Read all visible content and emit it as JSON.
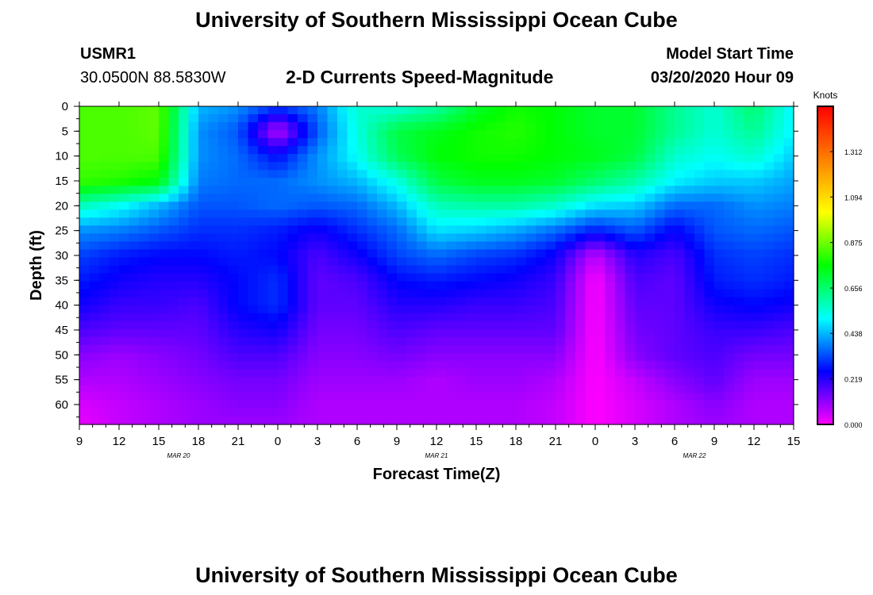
{
  "header": {
    "title": "University of Southern Mississippi Ocean Cube",
    "station": "USMR1",
    "coords": "30.0500N 88.5830W",
    "subtitle": "2-D Currents Speed-Magnitude",
    "model_label": "Model Start Time",
    "model_time": "03/20/2020 Hour 09"
  },
  "footer": {
    "title": "University of Southern Mississippi Ocean Cube"
  },
  "chart_data": {
    "type": "heatmap",
    "title": "2-D Currents Speed-Magnitude",
    "xlabel": "Forecast Time(Z)",
    "ylabel": "Depth (ft)",
    "x_tick_labels": [
      "9",
      "12",
      "15",
      "18",
      "21",
      "0",
      "3",
      "6",
      "9",
      "12",
      "15",
      "18",
      "21",
      "0",
      "3",
      "6",
      "9",
      "12",
      "15"
    ],
    "date_labels": [
      "MAR 20",
      "MAR 21",
      "MAR 22"
    ],
    "date_label_ticks": [
      2.5,
      9,
      15.5
    ],
    "y_tick_labels": [
      "0",
      "5",
      "10",
      "15",
      "20",
      "25",
      "30",
      "35",
      "40",
      "45",
      "50",
      "55",
      "60"
    ],
    "ylim": [
      0,
      64
    ],
    "y_inverted": true,
    "xlim_hours": [
      0,
      54
    ],
    "colorbar": {
      "unit": "Knots",
      "tick_labels": [
        "1.312",
        "1.094",
        "0.875",
        "0.656",
        "0.438",
        "0.219",
        "0.000"
      ],
      "range": [
        0,
        1.53
      ],
      "colors": [
        "#ff00ff",
        "#0000ff",
        "#00ffff",
        "#00ff00",
        "#ffff00",
        "#ff8000",
        "#ff0000"
      ]
    },
    "depths_ft": [
      0,
      5,
      10,
      15,
      20,
      25,
      30,
      35,
      40,
      45,
      50,
      55,
      60,
      64
    ],
    "time_hours": [
      0,
      3,
      6,
      9,
      12,
      15,
      18,
      21,
      24,
      27,
      30,
      33,
      36,
      39,
      42,
      45,
      48,
      51,
      54
    ],
    "speed_knots": [
      [
        0.84,
        0.84,
        0.86,
        0.44,
        0.4,
        0.32,
        0.38,
        0.56,
        0.54,
        0.6,
        0.72,
        0.78,
        0.76,
        0.72,
        0.72,
        0.62,
        0.55,
        0.66,
        0.5
      ],
      [
        0.84,
        0.84,
        0.86,
        0.4,
        0.34,
        0.06,
        0.34,
        0.54,
        0.7,
        0.74,
        0.78,
        0.8,
        0.76,
        0.72,
        0.72,
        0.62,
        0.55,
        0.62,
        0.5
      ],
      [
        0.84,
        0.84,
        0.84,
        0.4,
        0.36,
        0.26,
        0.4,
        0.52,
        0.68,
        0.76,
        0.78,
        0.78,
        0.76,
        0.74,
        0.7,
        0.56,
        0.52,
        0.56,
        0.46
      ],
      [
        0.82,
        0.8,
        0.76,
        0.38,
        0.36,
        0.36,
        0.4,
        0.44,
        0.54,
        0.7,
        0.74,
        0.74,
        0.72,
        0.66,
        0.6,
        0.5,
        0.46,
        0.46,
        0.42
      ],
      [
        0.58,
        0.52,
        0.44,
        0.34,
        0.34,
        0.36,
        0.34,
        0.36,
        0.44,
        0.58,
        0.6,
        0.6,
        0.56,
        0.48,
        0.46,
        0.36,
        0.36,
        0.4,
        0.38
      ],
      [
        0.4,
        0.38,
        0.34,
        0.3,
        0.3,
        0.28,
        0.24,
        0.3,
        0.36,
        0.48,
        0.46,
        0.42,
        0.36,
        0.28,
        0.34,
        0.25,
        0.34,
        0.36,
        0.34
      ],
      [
        0.32,
        0.28,
        0.26,
        0.26,
        0.28,
        0.26,
        0.18,
        0.24,
        0.32,
        0.36,
        0.32,
        0.3,
        0.24,
        0.06,
        0.22,
        0.18,
        0.3,
        0.32,
        0.3
      ],
      [
        0.28,
        0.24,
        0.22,
        0.22,
        0.26,
        0.3,
        0.16,
        0.18,
        0.26,
        0.28,
        0.26,
        0.24,
        0.2,
        0.0,
        0.18,
        0.16,
        0.28,
        0.3,
        0.28
      ],
      [
        0.24,
        0.2,
        0.2,
        0.18,
        0.26,
        0.3,
        0.16,
        0.16,
        0.22,
        0.22,
        0.2,
        0.2,
        0.18,
        0.0,
        0.16,
        0.16,
        0.24,
        0.26,
        0.24
      ],
      [
        0.18,
        0.16,
        0.16,
        0.16,
        0.22,
        0.24,
        0.14,
        0.14,
        0.18,
        0.16,
        0.16,
        0.16,
        0.16,
        0.0,
        0.14,
        0.16,
        0.2,
        0.2,
        0.18
      ],
      [
        0.12,
        0.1,
        0.12,
        0.14,
        0.18,
        0.18,
        0.12,
        0.12,
        0.14,
        0.12,
        0.12,
        0.12,
        0.12,
        0.0,
        0.12,
        0.16,
        0.18,
        0.14,
        0.14
      ],
      [
        0.08,
        0.08,
        0.1,
        0.12,
        0.14,
        0.14,
        0.1,
        0.1,
        0.1,
        0.08,
        0.1,
        0.1,
        0.08,
        0.0,
        0.06,
        0.12,
        0.16,
        0.1,
        0.1
      ],
      [
        0.04,
        0.06,
        0.08,
        0.1,
        0.12,
        0.12,
        0.08,
        0.08,
        0.08,
        0.08,
        0.08,
        0.08,
        0.06,
        0.0,
        0.04,
        0.08,
        0.12,
        0.08,
        0.08
      ],
      [
        0.02,
        0.06,
        0.08,
        0.1,
        0.1,
        0.1,
        0.08,
        0.08,
        0.08,
        0.08,
        0.08,
        0.08,
        0.06,
        0.0,
        0.04,
        0.08,
        0.1,
        0.08,
        0.08
      ]
    ]
  }
}
